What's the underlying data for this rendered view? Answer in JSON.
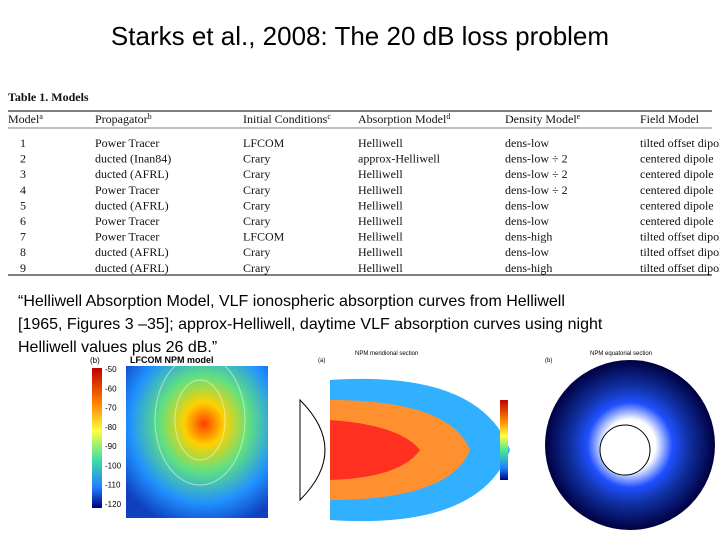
{
  "header": {
    "title": "Starks et al., 2008: The 20 dB loss problem"
  },
  "table": {
    "caption": "Table 1. Models",
    "columns": [
      {
        "text": "Model",
        "note": "a"
      },
      {
        "text": "Propagator",
        "note": "b"
      },
      {
        "text": "Initial Conditions",
        "note": "c"
      },
      {
        "text": "Absorption Model",
        "note": "d"
      },
      {
        "text": "Density Model",
        "note": "e"
      },
      {
        "text": "Field Model"
      }
    ],
    "rows": [
      [
        "1",
        "Power Tracer",
        "LFCOM",
        "Helliwell",
        "dens-low",
        "tilted offset dipole"
      ],
      [
        "2",
        "ducted (Inan84)",
        "Crary",
        "approx-Helliwell",
        "dens-low ÷ 2",
        "centered dipole"
      ],
      [
        "3",
        "ducted (AFRL)",
        "Crary",
        "Helliwell",
        "dens-low ÷ 2",
        "centered dipole"
      ],
      [
        "4",
        "Power Tracer",
        "Crary",
        "Helliwell",
        "dens-low ÷ 2",
        "centered dipole"
      ],
      [
        "5",
        "ducted (AFRL)",
        "Crary",
        "Helliwell",
        "dens-low",
        "centered dipole"
      ],
      [
        "6",
        "Power Tracer",
        "Crary",
        "Helliwell",
        "dens-low",
        "centered dipole"
      ],
      [
        "7",
        "Power Tracer",
        "LFCOM",
        "Helliwell",
        "dens-high",
        "tilted offset dipole"
      ],
      [
        "8",
        "ducted (AFRL)",
        "Crary",
        "Helliwell",
        "dens-low",
        "tilted offset dipole"
      ],
      [
        "9",
        "ducted (AFRL)",
        "Crary",
        "Helliwell",
        "dens-high",
        "tilted offset dipole"
      ]
    ]
  },
  "quote": [
    "“Helliwell Absorption Model, VLF ionospheric absorption curves from Helliwell",
    "[1965, Figures 3 –35]; approx-Helliwell, daytime VLF absorption curves using night",
    "Helliwell values plus 26 dB.”"
  ],
  "figures": [
    {
      "panel": "(b)",
      "title": "LFCOM NPM model",
      "colorbar": [
        "-50",
        "-60",
        "-70",
        "-80",
        "-90",
        "-100",
        "-110",
        "-120"
      ]
    },
    {
      "panel": "(a)",
      "title": "NPM meridional section"
    },
    {
      "panel": "(b)",
      "title": "NPM equatorial section"
    }
  ]
}
